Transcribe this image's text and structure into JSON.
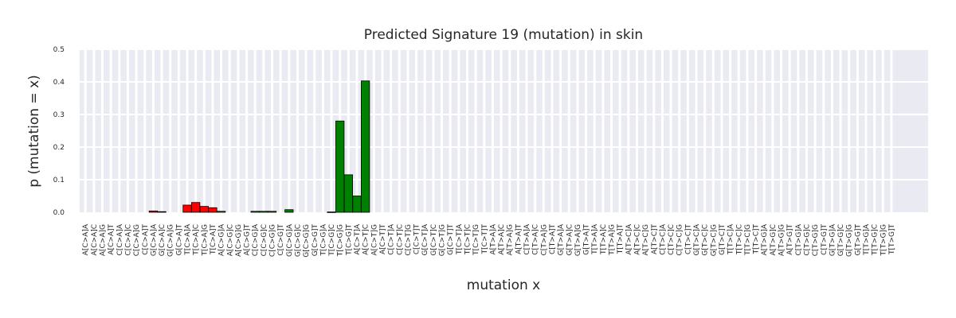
{
  "chart_data": {
    "type": "bar",
    "title": "Predicted Signature 19 (mutation) in skin",
    "xlabel": "mutation x",
    "ylabel": "p (mutation = x)",
    "ylim": [
      0,
      0.5
    ],
    "yticks": [
      "0.0",
      "0.1",
      "0.2",
      "0.3",
      "0.4",
      "0.5"
    ],
    "grid": true,
    "background": "#eaeaf2",
    "colors": {
      "C>A": "#ff0000",
      "C>G": "#000000",
      "C>T": "#008000",
      "T>A": "#aaaaaa",
      "T>C": "#ffff00",
      "T>G": "#0000ff"
    },
    "categories": [
      "A[C>A]A",
      "A[C>A]C",
      "A[C>A]G",
      "A[C>A]T",
      "C[C>A]A",
      "C[C>A]C",
      "C[C>A]G",
      "C[C>A]T",
      "G[C>A]A",
      "G[C>A]C",
      "G[C>A]G",
      "G[C>A]T",
      "T[C>A]A",
      "T[C>A]C",
      "T[C>A]G",
      "T[C>A]T",
      "A[C>G]A",
      "A[C>G]C",
      "A[C>G]G",
      "A[C>G]T",
      "C[C>G]A",
      "C[C>G]C",
      "C[C>G]G",
      "C[C>G]T",
      "G[C>G]A",
      "G[C>G]C",
      "G[C>G]G",
      "G[C>G]T",
      "T[C>G]A",
      "T[C>G]C",
      "T[C>G]G",
      "T[C>G]T",
      "A[C>T]A",
      "A[C>T]C",
      "A[C>T]G",
      "A[C>T]T",
      "C[C>T]A",
      "C[C>T]C",
      "C[C>T]G",
      "C[C>T]T",
      "G[C>T]A",
      "G[C>T]C",
      "G[C>T]G",
      "G[C>T]T",
      "T[C>T]A",
      "T[C>T]C",
      "T[C>T]G",
      "T[C>T]T",
      "A[T>A]A",
      "A[T>A]C",
      "A[T>A]G",
      "A[T>A]T",
      "C[T>A]A",
      "C[T>A]C",
      "C[T>A]G",
      "C[T>A]T",
      "G[T>A]A",
      "G[T>A]C",
      "G[T>A]G",
      "G[T>A]T",
      "T[T>A]A",
      "T[T>A]C",
      "T[T>A]G",
      "T[T>A]T",
      "A[T>C]A",
      "A[T>C]C",
      "A[T>C]G",
      "A[T>C]T",
      "C[T>C]A",
      "C[T>C]C",
      "C[T>C]G",
      "C[T>C]T",
      "G[T>C]A",
      "G[T>C]C",
      "G[T>C]G",
      "G[T>C]T",
      "T[T>C]A",
      "T[T>C]C",
      "T[T>C]G",
      "T[T>C]T",
      "A[T>G]A",
      "A[T>G]C",
      "A[T>G]G",
      "A[T>G]T",
      "C[T>G]A",
      "C[T>G]C",
      "C[T>G]G",
      "C[T>G]T",
      "G[T>G]A",
      "G[T>G]C",
      "G[T>G]G",
      "G[T>G]T",
      "T[T>G]A",
      "T[T>G]C",
      "T[T>G]G",
      "T[T>G]T"
    ],
    "values": [
      0,
      0,
      0,
      0,
      0,
      0,
      0,
      0,
      0.004,
      0.002,
      0,
      0,
      0.022,
      0.03,
      0.018,
      0.014,
      0.003,
      0,
      0,
      0,
      0.003,
      0.003,
      0.003,
      0,
      0.008,
      0,
      0,
      0,
      0,
      0.001,
      0.28,
      0.115,
      0.05,
      0.403,
      0,
      0,
      0,
      0,
      0,
      0,
      0,
      0,
      0,
      0,
      0,
      0,
      0,
      0,
      0,
      0,
      0,
      0,
      0,
      0,
      0,
      0,
      0,
      0,
      0,
      0,
      0,
      0,
      0,
      0,
      0,
      0,
      0,
      0,
      0,
      0,
      0,
      0,
      0,
      0,
      0,
      0,
      0,
      0,
      0,
      0,
      0,
      0,
      0,
      0,
      0,
      0,
      0,
      0,
      0,
      0,
      0,
      0,
      0,
      0,
      0,
      0
    ],
    "bar_colors": [
      "#ff0000",
      "#ff0000",
      "#ff0000",
      "#ff0000",
      "#ff0000",
      "#ff0000",
      "#ff0000",
      "#ff0000",
      "#ff0000",
      "#ff0000",
      "#ff0000",
      "#ff0000",
      "#ff0000",
      "#ff0000",
      "#ff0000",
      "#ff0000",
      "#008000",
      "#008000",
      "#008000",
      "#008000",
      "#008000",
      "#008000",
      "#008000",
      "#008000",
      "#008000",
      "#008000",
      "#008000",
      "#008000",
      "#008000",
      "#008000",
      "#008000",
      "#008000",
      "#008000",
      "#008000",
      "#008000",
      "#008000",
      "#008000",
      "#008000",
      "#008000",
      "#008000",
      "#008000",
      "#008000",
      "#008000",
      "#008000",
      "#008000",
      "#008000",
      "#008000",
      "#008000",
      "#008000",
      "#008000",
      "#008000",
      "#008000",
      "#008000",
      "#008000",
      "#008000",
      "#008000",
      "#008000",
      "#008000",
      "#008000",
      "#008000",
      "#008000",
      "#008000",
      "#008000",
      "#008000",
      "#008000",
      "#008000",
      "#008000",
      "#008000",
      "#008000",
      "#008000",
      "#008000",
      "#008000",
      "#008000",
      "#008000",
      "#008000",
      "#008000",
      "#008000",
      "#008000",
      "#008000",
      "#008000",
      "#008000",
      "#008000",
      "#008000",
      "#008000",
      "#008000",
      "#008000",
      "#008000",
      "#008000",
      "#008000",
      "#008000",
      "#008000",
      "#008000",
      "#008000",
      "#008000",
      "#008000",
      "#008000"
    ],
    "tick_labels": [
      "A[C>A]A",
      "A[C>A]C",
      "A[C>A]G",
      "A[C>A]T",
      "C[C>A]A",
      "C[C>A]C",
      "C[C>A]G",
      "C[C>A]T",
      "G[C>A]A",
      "G[C>A]C",
      "G[C>A]G",
      "G[C>A]T",
      "T[C>A]A",
      "T[C>A]C",
      "T[C>A]G",
      "T[C>A]T",
      "A[C>G]A",
      "A[C>G]C",
      "A[C>G]G",
      "A[C>G]T",
      "C[C>G]A",
      "C[C>G]C",
      "C[C>G]G",
      "C[C>G]T",
      "G[C>G]A",
      "G[C>G]C",
      "G[C>G]G",
      "G[C>G]T",
      "T[C>G]A",
      "T[C>G]C",
      "T[C>G]G",
      "T[C>G]T",
      "A[C>T]A",
      "A[C>T]C",
      "A[C>T]G",
      "A[C>T]T",
      "C[C>T]A",
      "C[C>T]C",
      "C[C>T]G",
      "C[C>T]T",
      "G[C>T]A",
      "G[C>T]C",
      "G[C>T]G",
      "G[C>T]T",
      "T[C>T]A",
      "T[C>T]C",
      "T[C>T]G",
      "T[C>T]T",
      "A[T>A]A",
      "A[T>A]C",
      "A[T>A]G",
      "A[T>A]T",
      "C[T>A]A",
      "C[T>A]C",
      "C[T>A]G",
      "C[T>A]T",
      "G[T>A]A",
      "G[T>A]C",
      "G[T>A]G",
      "G[T>A]T",
      "T[T>A]A",
      "T[T>A]C",
      "T[T>A]G",
      "T[T>A]T",
      "A[T>C]A",
      "A[T>C]C",
      "A[T>C]G",
      "A[T>C]T",
      "C[T>C]A",
      "C[T>C]C",
      "C[T>C]G",
      "C[T>C]T",
      "G[T>C]A",
      "G[T>C]C",
      "G[T>C]G",
      "G[T>C]T",
      "T[T>C]A",
      "T[T>C]C",
      "T[T>C]G",
      "T[T>C]T",
      "A[T>G]A",
      "A[T>G]C",
      "A[T>G]G",
      "A[T>G]T",
      "C[T>G]A",
      "C[T>G]C",
      "C[T>G]G",
      "C[T>G]T",
      "G[T>G]A",
      "G[T>G]C",
      "G[T>G]G",
      "G[T>G]T",
      "T[T>G]A",
      "T[T>G]C",
      "T[T>G]G",
      "T[T>G]T"
    ]
  }
}
